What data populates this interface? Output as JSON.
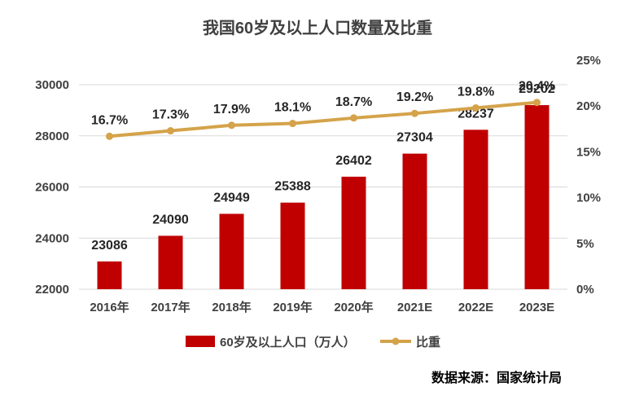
{
  "title": "我国60岁及以上人口数量及比重",
  "source": "数据来源：国家统计局",
  "colors": {
    "bar": "#C00000",
    "line": "#D4A34A",
    "grid": "#D9D9D9",
    "text": "#404040"
  },
  "chart_data": {
    "type": "bar",
    "title": "我国60岁及以上人口数量及比重",
    "categories": [
      "2016年",
      "2017年",
      "2018年",
      "2019年",
      "2020年",
      "2021E",
      "2022E",
      "2023E"
    ],
    "series": [
      {
        "name": "60岁及以上人口（万人）",
        "type": "bar",
        "axis": "left",
        "values": [
          23086,
          24090,
          24949,
          25388,
          26402,
          27304,
          28237,
          29202
        ],
        "labels": [
          "23086",
          "24090",
          "24949",
          "25388",
          "26402",
          "27304",
          "28237",
          "29202"
        ]
      },
      {
        "name": "比重",
        "type": "line",
        "axis": "right",
        "values": [
          16.7,
          17.3,
          17.9,
          18.1,
          18.7,
          19.2,
          19.8,
          20.4
        ],
        "labels": [
          "16.7%",
          "17.3%",
          "17.9%",
          "18.1%",
          "18.7%",
          "19.2%",
          "19.8%",
          "20.4%"
        ]
      }
    ],
    "y_left": {
      "lim": [
        22000,
        30000
      ],
      "ticks": [
        "22000",
        "24000",
        "26000",
        "28000",
        "30000"
      ],
      "tick_values": [
        22000,
        24000,
        26000,
        28000,
        30000
      ]
    },
    "y_right": {
      "lim": [
        0,
        25
      ],
      "ticks": [
        "0%",
        "5%",
        "10%",
        "15%",
        "20%",
        "25%"
      ],
      "tick_values": [
        0,
        5,
        10,
        15,
        20,
        25
      ]
    },
    "grid": true,
    "legend_position": "bottom"
  }
}
